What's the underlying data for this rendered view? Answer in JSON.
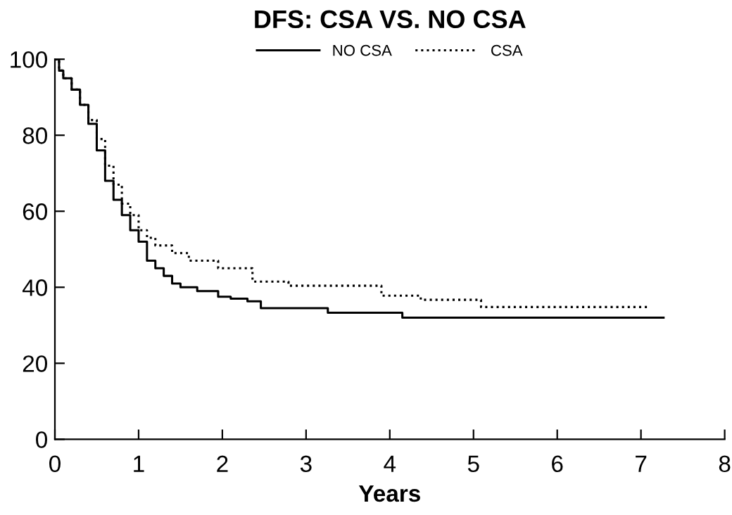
{
  "chart_data": {
    "type": "step",
    "title": "DFS: CSA VS. NO CSA",
    "xlabel": "Years",
    "xlim": [
      0,
      8
    ],
    "xticks": [
      0,
      1,
      2,
      3,
      4,
      5,
      6,
      7,
      8
    ],
    "ylim": [
      0,
      100
    ],
    "yticks": [
      0,
      20,
      40,
      60,
      80,
      100
    ],
    "grid": false,
    "legend": "top",
    "marker": "none",
    "series": [
      {
        "name": "NO CSA",
        "color": "#000000",
        "line_style": "solid",
        "x": [
          0,
          0.05,
          0.1,
          0.2,
          0.3,
          0.4,
          0.5,
          0.6,
          0.7,
          0.8,
          0.9,
          1.0,
          1.1,
          1.2,
          1.3,
          1.4,
          1.5,
          1.7,
          1.95,
          2.1,
          2.3,
          2.46,
          3.26,
          4.15,
          7.27
        ],
        "values": [
          100,
          97,
          95,
          92,
          88,
          83,
          76,
          68,
          63,
          59,
          55,
          52,
          47,
          45,
          43,
          41,
          40,
          39,
          37.5,
          37,
          36.3,
          34.5,
          33.3,
          32,
          32
        ]
      },
      {
        "name": "CSA",
        "color": "#000000",
        "line_style": "dotted",
        "x": [
          0,
          0.05,
          0.1,
          0.2,
          0.3,
          0.4,
          0.5,
          0.6,
          0.7,
          0.8,
          0.9,
          1.0,
          1.1,
          1.2,
          1.4,
          1.6,
          1.95,
          2.36,
          2.79,
          3.9,
          4.37,
          5.09,
          7.1
        ],
        "values": [
          100,
          97,
          95,
          92,
          88,
          84,
          79,
          72,
          67,
          62,
          59,
          55,
          53,
          51,
          49,
          47,
          45,
          41.5,
          40.4,
          37.8,
          36.7,
          34.8,
          34.8
        ]
      }
    ]
  }
}
